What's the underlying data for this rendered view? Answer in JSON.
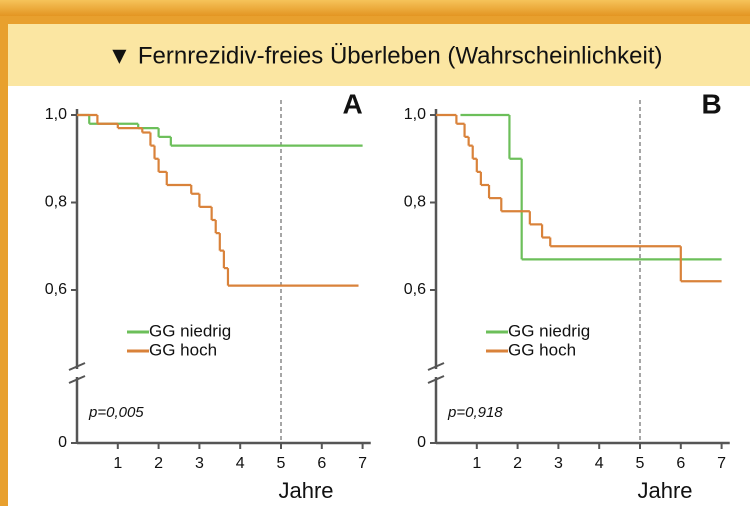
{
  "header": {
    "title": "▼ Fernrezidiv-freies Überleben (Wahrscheinlichkeit)"
  },
  "chart_data": [
    {
      "type": "step",
      "label": "A",
      "annotation": "p=0,005",
      "xlabel": "Jahre",
      "xlim": [
        0,
        7.2
      ],
      "xticks": [
        1,
        2,
        3,
        4,
        5,
        6,
        7
      ],
      "ylim": [
        0,
        1.0
      ],
      "y_break": true,
      "yticks": [
        0,
        {
          "value": 0.6,
          "label": "0,6"
        },
        {
          "value": 0.8,
          "label": "0,8"
        },
        {
          "value": 1.0,
          "label": "1,0"
        }
      ],
      "vline": 5,
      "series": [
        {
          "name": "GG niedrig",
          "color": "#6cbf5a",
          "x": [
            0,
            0.3,
            1.5,
            2.0,
            2.3,
            7.0
          ],
          "values": [
            1.0,
            0.98,
            0.97,
            0.95,
            0.93,
            0.93
          ]
        },
        {
          "name": "GG hoch",
          "color": "#d9823a",
          "x": [
            0,
            0.5,
            1.0,
            1.6,
            1.8,
            1.9,
            2.0,
            2.2,
            2.8,
            3.0,
            3.3,
            3.4,
            3.5,
            3.6,
            3.7,
            6.9
          ],
          "values": [
            1.0,
            0.98,
            0.97,
            0.96,
            0.93,
            0.9,
            0.87,
            0.84,
            0.82,
            0.79,
            0.76,
            0.73,
            0.69,
            0.65,
            0.61,
            0.61
          ]
        }
      ]
    },
    {
      "type": "step",
      "label": "B",
      "annotation": "p=0,918",
      "xlabel": "Jahre",
      "xlim": [
        0,
        7.2
      ],
      "xticks": [
        1,
        2,
        3,
        4,
        5,
        6,
        7
      ],
      "ylim": [
        0,
        1.0
      ],
      "y_break": true,
      "yticks": [
        0,
        {
          "value": 0.6,
          "label": "0,6"
        },
        {
          "value": 0.8,
          "label": "0,8"
        },
        {
          "value": 1.0,
          "label": "1,0"
        }
      ],
      "vline": 5,
      "series": [
        {
          "name": "GG niedrig",
          "color": "#6cbf5a",
          "x": [
            0.6,
            1.8,
            2.1,
            7.0
          ],
          "values": [
            1.0,
            0.9,
            0.67,
            0.67
          ]
        },
        {
          "name": "GG hoch",
          "color": "#d9823a",
          "x": [
            0,
            0.5,
            0.7,
            0.8,
            0.9,
            1.0,
            1.1,
            1.3,
            1.6,
            2.3,
            2.6,
            2.8,
            6.0,
            7.0
          ],
          "values": [
            1.0,
            0.98,
            0.95,
            0.93,
            0.9,
            0.87,
            0.84,
            0.81,
            0.78,
            0.75,
            0.72,
            0.7,
            0.62,
            0.62
          ]
        }
      ]
    }
  ]
}
